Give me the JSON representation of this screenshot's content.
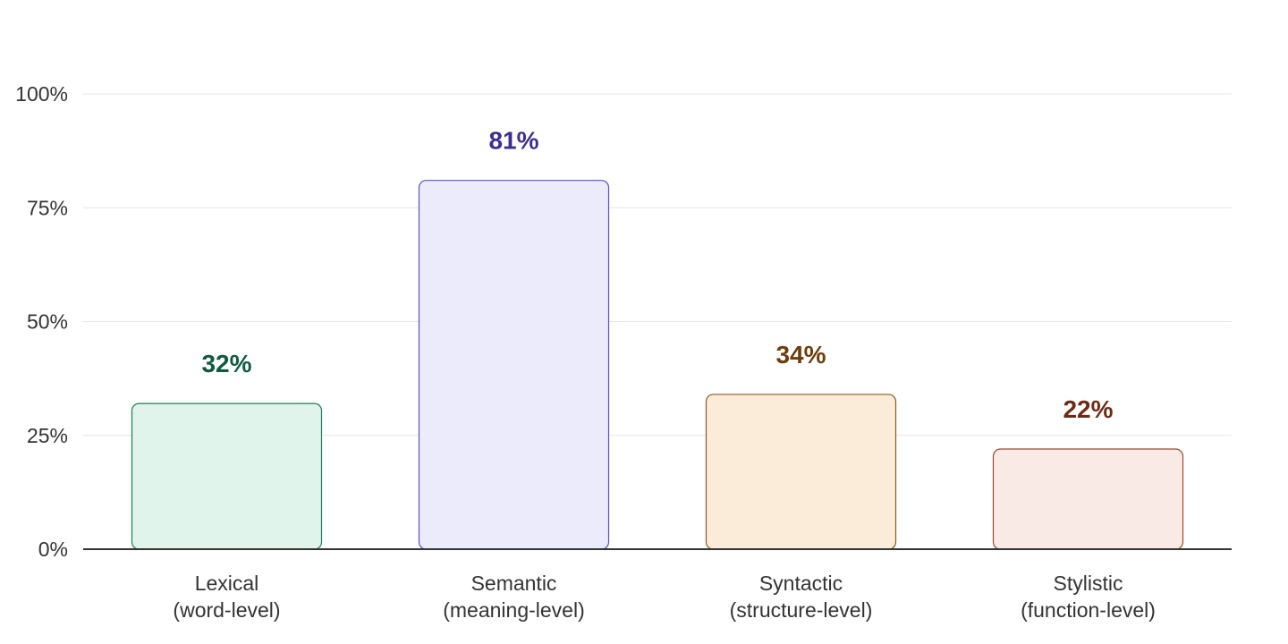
{
  "chart_data": {
    "type": "bar",
    "categories": [
      [
        "Lexical",
        "(word-level)"
      ],
      [
        "Semantic",
        "(meaning-level)"
      ],
      [
        "Syntactic",
        "(structure-level)"
      ],
      [
        "Stylistic",
        "(function-level)"
      ]
    ],
    "values": [
      32,
      81,
      34,
      22
    ],
    "value_labels": [
      "32%",
      "81%",
      "34%",
      "22%"
    ],
    "ylim": [
      0,
      100
    ],
    "yticks": [
      0,
      25,
      50,
      75,
      100
    ],
    "ytick_labels": [
      "0%",
      "25%",
      "50%",
      "75%",
      "100%"
    ],
    "grid": true,
    "title": "",
    "xlabel": "",
    "ylabel": "",
    "colors": {
      "fills": [
        "#e0f4ec",
        "#ecebfc",
        "#faecd9",
        "#faeae6"
      ],
      "strokes": [
        "#1f7a55",
        "#5b4fc4",
        "#8a5a1e",
        "#9a4a2e"
      ],
      "label_colors": [
        "#0f5a40",
        "#3c2f8f",
        "#6e3d0c",
        "#6e2a14"
      ]
    }
  }
}
